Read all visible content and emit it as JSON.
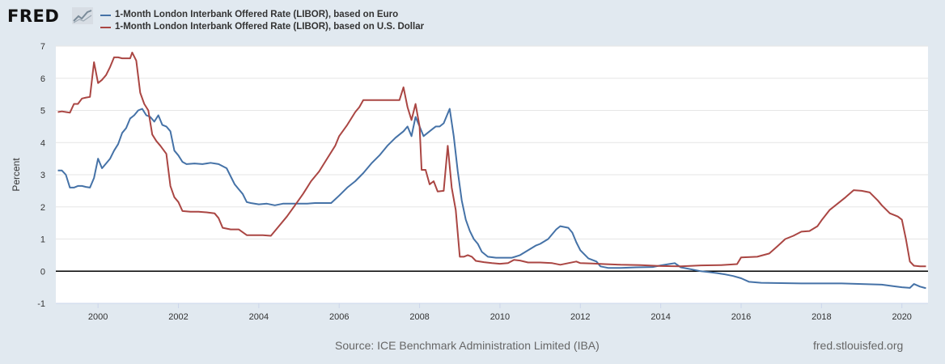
{
  "header": {
    "logo_text": "FRED",
    "logo_icon": "trend-chart-icon"
  },
  "footer": {
    "source": "Source: ICE Benchmark Administration Limited (IBA)",
    "url": "fred.stlouisfed.org"
  },
  "colors": {
    "euro": "#4572a7",
    "usd": "#aa4643",
    "plot_bg": "#ffffff",
    "page_bg": "#e1e9f0"
  },
  "chart_data": {
    "type": "line",
    "ylabel": "Percent",
    "xlim": [
      1998.95,
      2020.65
    ],
    "ylim": [
      -1,
      7
    ],
    "yticks": [
      -1,
      0,
      1,
      2,
      3,
      4,
      5,
      6,
      7
    ],
    "xticks": [
      2000,
      2002,
      2004,
      2006,
      2008,
      2010,
      2012,
      2014,
      2016,
      2018,
      2020
    ],
    "grid": true,
    "legend": "top-left",
    "series": [
      {
        "name": "1-Month London Interbank Offered Rate (LIBOR), based on Euro",
        "color": "#4572a7",
        "points": [
          [
            1999.0,
            3.13
          ],
          [
            1999.1,
            3.13
          ],
          [
            1999.2,
            3.0
          ],
          [
            1999.3,
            2.6
          ],
          [
            1999.4,
            2.6
          ],
          [
            1999.5,
            2.65
          ],
          [
            1999.6,
            2.65
          ],
          [
            1999.7,
            2.62
          ],
          [
            1999.8,
            2.6
          ],
          [
            1999.9,
            2.9
          ],
          [
            2000.0,
            3.5
          ],
          [
            2000.1,
            3.2
          ],
          [
            2000.2,
            3.35
          ],
          [
            2000.3,
            3.5
          ],
          [
            2000.4,
            3.75
          ],
          [
            2000.5,
            3.95
          ],
          [
            2000.6,
            4.3
          ],
          [
            2000.7,
            4.45
          ],
          [
            2000.8,
            4.75
          ],
          [
            2000.9,
            4.85
          ],
          [
            2001.0,
            5.0
          ],
          [
            2001.1,
            5.05
          ],
          [
            2001.2,
            4.85
          ],
          [
            2001.3,
            4.8
          ],
          [
            2001.4,
            4.65
          ],
          [
            2001.5,
            4.85
          ],
          [
            2001.6,
            4.55
          ],
          [
            2001.7,
            4.5
          ],
          [
            2001.8,
            4.35
          ],
          [
            2001.9,
            3.75
          ],
          [
            2002.0,
            3.6
          ],
          [
            2002.1,
            3.4
          ],
          [
            2002.2,
            3.33
          ],
          [
            2002.4,
            3.35
          ],
          [
            2002.6,
            3.33
          ],
          [
            2002.8,
            3.37
          ],
          [
            2003.0,
            3.33
          ],
          [
            2003.2,
            3.2
          ],
          [
            2003.3,
            2.95
          ],
          [
            2003.4,
            2.7
          ],
          [
            2003.5,
            2.55
          ],
          [
            2003.6,
            2.4
          ],
          [
            2003.7,
            2.15
          ],
          [
            2003.8,
            2.12
          ],
          [
            2004.0,
            2.08
          ],
          [
            2004.2,
            2.1
          ],
          [
            2004.4,
            2.05
          ],
          [
            2004.6,
            2.1
          ],
          [
            2004.8,
            2.1
          ],
          [
            2005.0,
            2.1
          ],
          [
            2005.2,
            2.1
          ],
          [
            2005.4,
            2.12
          ],
          [
            2005.6,
            2.12
          ],
          [
            2005.8,
            2.12
          ],
          [
            2006.0,
            2.35
          ],
          [
            2006.2,
            2.6
          ],
          [
            2006.4,
            2.8
          ],
          [
            2006.6,
            3.05
          ],
          [
            2006.8,
            3.35
          ],
          [
            2007.0,
            3.6
          ],
          [
            2007.2,
            3.9
          ],
          [
            2007.4,
            4.15
          ],
          [
            2007.6,
            4.35
          ],
          [
            2007.7,
            4.5
          ],
          [
            2007.8,
            4.2
          ],
          [
            2007.9,
            4.8
          ],
          [
            2008.0,
            4.5
          ],
          [
            2008.1,
            4.2
          ],
          [
            2008.2,
            4.3
          ],
          [
            2008.3,
            4.4
          ],
          [
            2008.4,
            4.5
          ],
          [
            2008.5,
            4.5
          ],
          [
            2008.6,
            4.6
          ],
          [
            2008.75,
            5.05
          ],
          [
            2008.85,
            4.2
          ],
          [
            2008.95,
            3.1
          ],
          [
            2009.05,
            2.2
          ],
          [
            2009.15,
            1.6
          ],
          [
            2009.25,
            1.25
          ],
          [
            2009.35,
            1.0
          ],
          [
            2009.45,
            0.85
          ],
          [
            2009.55,
            0.6
          ],
          [
            2009.7,
            0.45
          ],
          [
            2009.9,
            0.42
          ],
          [
            2010.1,
            0.42
          ],
          [
            2010.3,
            0.42
          ],
          [
            2010.5,
            0.5
          ],
          [
            2010.7,
            0.65
          ],
          [
            2010.9,
            0.8
          ],
          [
            2011.0,
            0.85
          ],
          [
            2011.2,
            1.0
          ],
          [
            2011.4,
            1.3
          ],
          [
            2011.5,
            1.4
          ],
          [
            2011.7,
            1.35
          ],
          [
            2011.8,
            1.2
          ],
          [
            2011.9,
            0.9
          ],
          [
            2012.0,
            0.65
          ],
          [
            2012.2,
            0.4
          ],
          [
            2012.4,
            0.3
          ],
          [
            2012.5,
            0.15
          ],
          [
            2012.7,
            0.1
          ],
          [
            2013.0,
            0.1
          ],
          [
            2013.4,
            0.12
          ],
          [
            2013.8,
            0.13
          ],
          [
            2014.0,
            0.18
          ],
          [
            2014.2,
            0.22
          ],
          [
            2014.35,
            0.25
          ],
          [
            2014.5,
            0.12
          ],
          [
            2014.8,
            0.05
          ],
          [
            2015.0,
            0.0
          ],
          [
            2015.2,
            -0.03
          ],
          [
            2015.4,
            -0.06
          ],
          [
            2015.6,
            -0.1
          ],
          [
            2015.8,
            -0.15
          ],
          [
            2016.0,
            -0.22
          ],
          [
            2016.2,
            -0.33
          ],
          [
            2016.5,
            -0.36
          ],
          [
            2017.0,
            -0.37
          ],
          [
            2017.5,
            -0.38
          ],
          [
            2018.0,
            -0.38
          ],
          [
            2018.5,
            -0.38
          ],
          [
            2019.0,
            -0.4
          ],
          [
            2019.5,
            -0.42
          ],
          [
            2019.8,
            -0.47
          ],
          [
            2020.0,
            -0.5
          ],
          [
            2020.2,
            -0.52
          ],
          [
            2020.3,
            -0.4
          ],
          [
            2020.45,
            -0.48
          ],
          [
            2020.6,
            -0.53
          ]
        ]
      },
      {
        "name": "1-Month London Interbank Offered Rate (LIBOR), based on U.S. Dollar",
        "color": "#aa4643",
        "points": [
          [
            1999.0,
            4.95
          ],
          [
            1999.1,
            4.97
          ],
          [
            1999.2,
            4.95
          ],
          [
            1999.3,
            4.93
          ],
          [
            1999.4,
            5.2
          ],
          [
            1999.5,
            5.2
          ],
          [
            1999.6,
            5.37
          ],
          [
            1999.7,
            5.4
          ],
          [
            1999.8,
            5.42
          ],
          [
            1999.9,
            6.5
          ],
          [
            2000.0,
            5.85
          ],
          [
            2000.1,
            5.95
          ],
          [
            2000.2,
            6.1
          ],
          [
            2000.3,
            6.35
          ],
          [
            2000.4,
            6.65
          ],
          [
            2000.5,
            6.65
          ],
          [
            2000.6,
            6.62
          ],
          [
            2000.8,
            6.62
          ],
          [
            2000.85,
            6.8
          ],
          [
            2000.95,
            6.55
          ],
          [
            2001.05,
            5.55
          ],
          [
            2001.15,
            5.2
          ],
          [
            2001.25,
            5.0
          ],
          [
            2001.35,
            4.25
          ],
          [
            2001.45,
            4.05
          ],
          [
            2001.55,
            3.9
          ],
          [
            2001.7,
            3.65
          ],
          [
            2001.8,
            2.65
          ],
          [
            2001.9,
            2.3
          ],
          [
            2002.0,
            2.15
          ],
          [
            2002.1,
            1.87
          ],
          [
            2002.3,
            1.85
          ],
          [
            2002.5,
            1.85
          ],
          [
            2002.7,
            1.83
          ],
          [
            2002.9,
            1.8
          ],
          [
            2003.0,
            1.65
          ],
          [
            2003.1,
            1.35
          ],
          [
            2003.3,
            1.3
          ],
          [
            2003.5,
            1.3
          ],
          [
            2003.7,
            1.12
          ],
          [
            2003.9,
            1.12
          ],
          [
            2004.1,
            1.12
          ],
          [
            2004.3,
            1.1
          ],
          [
            2004.5,
            1.4
          ],
          [
            2004.7,
            1.7
          ],
          [
            2004.9,
            2.05
          ],
          [
            2005.1,
            2.4
          ],
          [
            2005.3,
            2.8
          ],
          [
            2005.5,
            3.1
          ],
          [
            2005.7,
            3.5
          ],
          [
            2005.9,
            3.9
          ],
          [
            2006.0,
            4.2
          ],
          [
            2006.2,
            4.55
          ],
          [
            2006.4,
            4.95
          ],
          [
            2006.5,
            5.1
          ],
          [
            2006.6,
            5.32
          ],
          [
            2006.8,
            5.32
          ],
          [
            2007.0,
            5.32
          ],
          [
            2007.2,
            5.32
          ],
          [
            2007.5,
            5.32
          ],
          [
            2007.6,
            5.72
          ],
          [
            2007.7,
            5.1
          ],
          [
            2007.8,
            4.7
          ],
          [
            2007.9,
            5.2
          ],
          [
            2008.0,
            4.5
          ],
          [
            2008.05,
            3.15
          ],
          [
            2008.15,
            3.15
          ],
          [
            2008.25,
            2.7
          ],
          [
            2008.35,
            2.8
          ],
          [
            2008.45,
            2.48
          ],
          [
            2008.6,
            2.5
          ],
          [
            2008.7,
            3.9
          ],
          [
            2008.8,
            2.6
          ],
          [
            2008.9,
            1.9
          ],
          [
            2009.0,
            0.45
          ],
          [
            2009.1,
            0.45
          ],
          [
            2009.2,
            0.5
          ],
          [
            2009.3,
            0.45
          ],
          [
            2009.4,
            0.32
          ],
          [
            2009.6,
            0.28
          ],
          [
            2009.8,
            0.25
          ],
          [
            2010.0,
            0.23
          ],
          [
            2010.2,
            0.25
          ],
          [
            2010.35,
            0.35
          ],
          [
            2010.5,
            0.33
          ],
          [
            2010.7,
            0.27
          ],
          [
            2011.0,
            0.27
          ],
          [
            2011.3,
            0.25
          ],
          [
            2011.5,
            0.2
          ],
          [
            2011.7,
            0.25
          ],
          [
            2011.9,
            0.3
          ],
          [
            2012.0,
            0.25
          ],
          [
            2012.3,
            0.24
          ],
          [
            2012.6,
            0.22
          ],
          [
            2013.0,
            0.2
          ],
          [
            2013.5,
            0.19
          ],
          [
            2014.0,
            0.16
          ],
          [
            2014.5,
            0.15
          ],
          [
            2015.0,
            0.18
          ],
          [
            2015.5,
            0.19
          ],
          [
            2015.9,
            0.22
          ],
          [
            2016.0,
            0.43
          ],
          [
            2016.4,
            0.45
          ],
          [
            2016.7,
            0.55
          ],
          [
            2016.9,
            0.77
          ],
          [
            2017.1,
            1.0
          ],
          [
            2017.3,
            1.1
          ],
          [
            2017.5,
            1.23
          ],
          [
            2017.7,
            1.25
          ],
          [
            2017.9,
            1.4
          ],
          [
            2018.0,
            1.58
          ],
          [
            2018.2,
            1.9
          ],
          [
            2018.4,
            2.1
          ],
          [
            2018.6,
            2.3
          ],
          [
            2018.8,
            2.52
          ],
          [
            2019.0,
            2.5
          ],
          [
            2019.2,
            2.45
          ],
          [
            2019.4,
            2.2
          ],
          [
            2019.5,
            2.05
          ],
          [
            2019.7,
            1.8
          ],
          [
            2019.8,
            1.75
          ],
          [
            2019.9,
            1.7
          ],
          [
            2020.0,
            1.6
          ],
          [
            2020.1,
            1.0
          ],
          [
            2020.2,
            0.3
          ],
          [
            2020.3,
            0.17
          ],
          [
            2020.45,
            0.15
          ],
          [
            2020.6,
            0.15
          ]
        ]
      }
    ]
  }
}
